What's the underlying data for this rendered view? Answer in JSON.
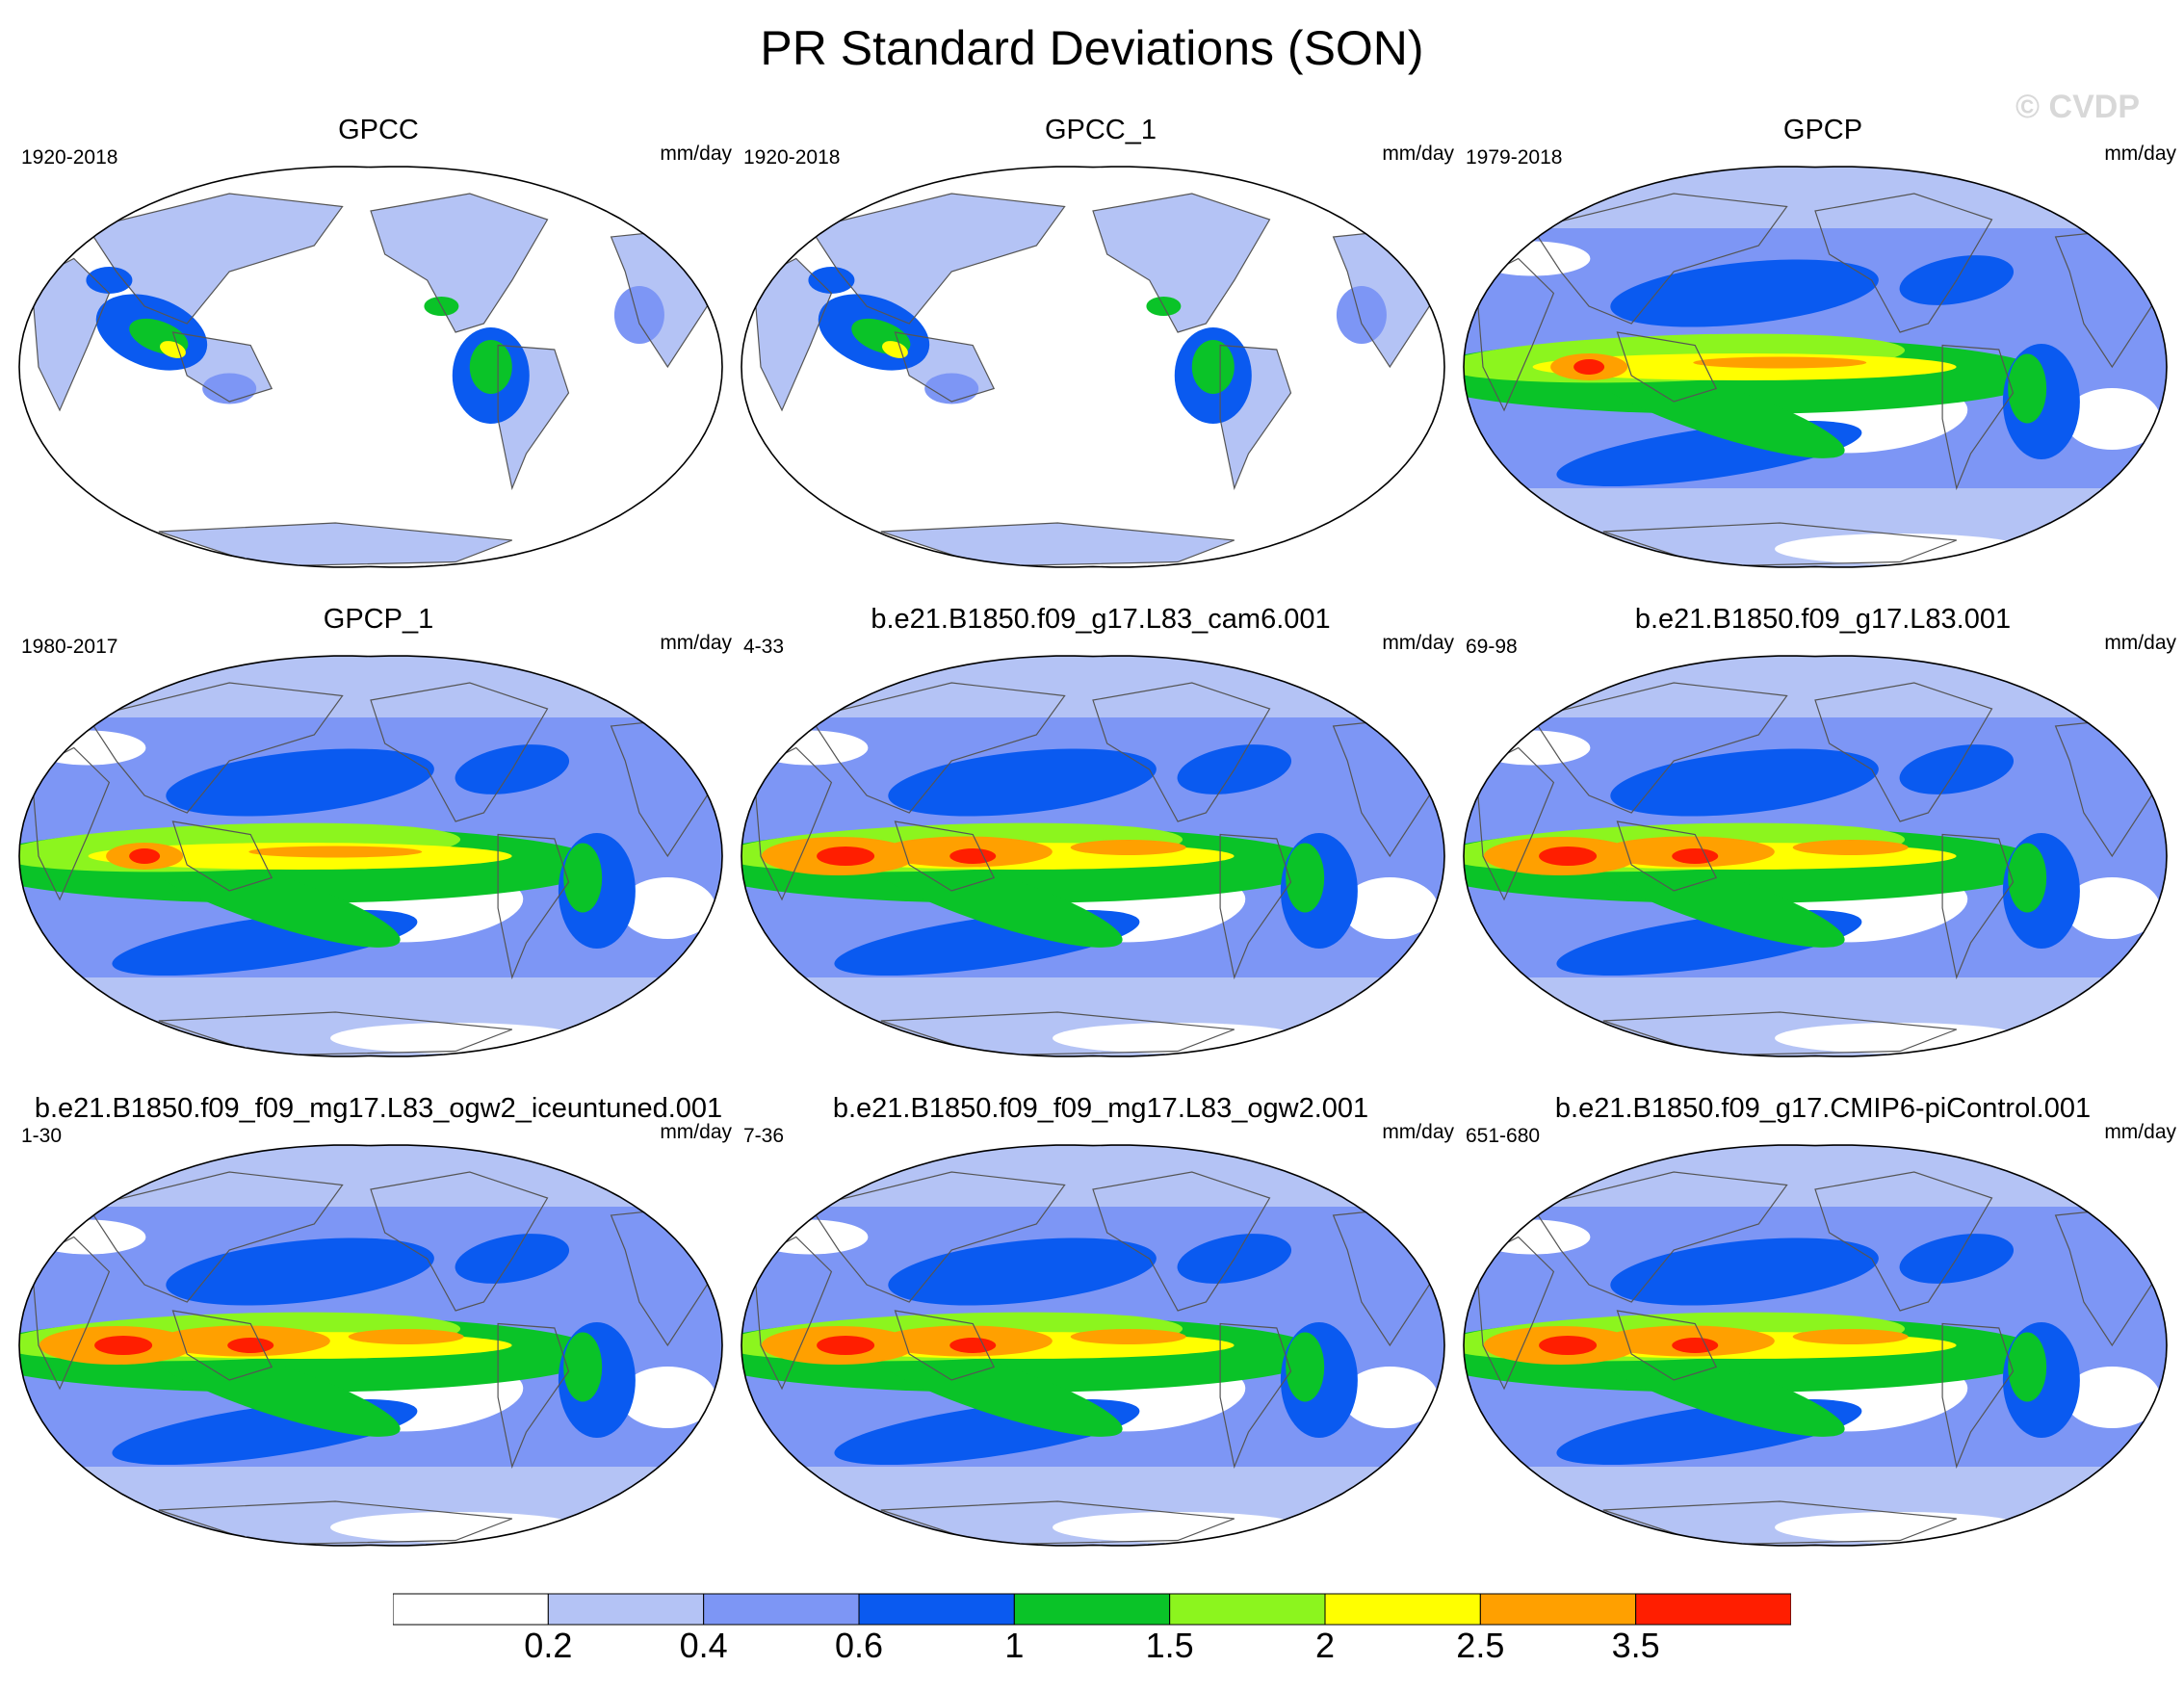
{
  "title": "PR Standard Deviations (SON)",
  "watermark": "© CVDP",
  "panels": [
    {
      "title": "GPCC",
      "years": "1920-2018",
      "units": "mm/day",
      "coverage": "land"
    },
    {
      "title": "GPCC_1",
      "years": "1920-2018",
      "units": "mm/day",
      "coverage": "land"
    },
    {
      "title": "GPCP",
      "years": "1979-2018",
      "units": "mm/day",
      "coverage": "global"
    },
    {
      "title": "GPCP_1",
      "years": "1980-2017",
      "units": "mm/day",
      "coverage": "global"
    },
    {
      "title": "b.e21.B1850.f09_g17.L83_cam6.001",
      "years": "4-33",
      "units": "mm/day",
      "coverage": "model"
    },
    {
      "title": "b.e21.B1850.f09_g17.L83.001",
      "years": "69-98",
      "units": "mm/day",
      "coverage": "model"
    },
    {
      "title": "b.e21.B1850.f09_f09_mg17.L83_ogw2_iceuntuned.001",
      "years": "1-30",
      "units": "mm/day",
      "coverage": "model"
    },
    {
      "title": "b.e21.B1850.f09_f09_mg17.L83_ogw2.001",
      "years": "7-36",
      "units": "mm/day",
      "coverage": "model"
    },
    {
      "title": "b.e21.B1850.f09_g17.CMIP6-piControl.001",
      "years": "651-680",
      "units": "mm/day",
      "coverage": "model"
    }
  ],
  "colorbar": {
    "labels": [
      "0.2",
      "0.4",
      "0.6",
      "1",
      "1.5",
      "2",
      "2.5",
      "3.5"
    ],
    "colors": [
      "#ffffff",
      "#b4c3f5",
      "#7d96f5",
      "#0a5af0",
      "#0ac328",
      "#8cf51e",
      "#ffff00",
      "#ffa000",
      "#ff1e00"
    ]
  }
}
